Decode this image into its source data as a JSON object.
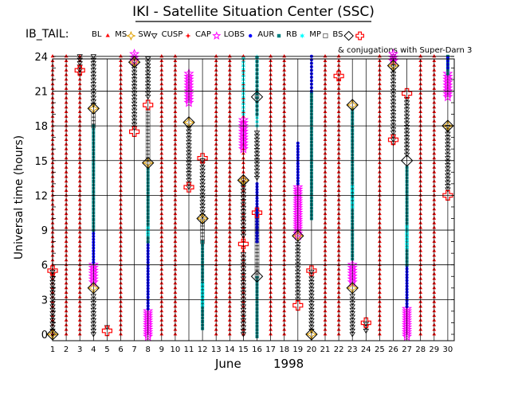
{
  "chart_data": {
    "type": "scatter",
    "title": "IKI - Satellite Situation Center (SSC)",
    "legend_prefix": "IB_TAIL:",
    "legend_note": "& conjugations with Super-Darn 3",
    "ylabel": "Universal time (hours)",
    "xlabel_month": "June",
    "xlabel_year": "1998",
    "xlim": [
      1,
      30
    ],
    "ylim": [
      0,
      24
    ],
    "yticks": [
      0,
      3,
      6,
      9,
      12,
      15,
      18,
      21,
      24
    ],
    "xticks": [
      1,
      2,
      3,
      4,
      5,
      6,
      7,
      8,
      9,
      10,
      11,
      12,
      13,
      14,
      15,
      16,
      17,
      18,
      19,
      20,
      21,
      22,
      23,
      24,
      25,
      26,
      27,
      28,
      29,
      30
    ],
    "series": [
      {
        "key": "BL",
        "name": "BL",
        "marker": "dot",
        "color": "#ff0000"
      },
      {
        "key": "MS",
        "name": "MS",
        "marker": "star4",
        "color": "#e0a000"
      },
      {
        "key": "SW",
        "name": "SW",
        "marker": "tri-down",
        "color": "#000000"
      },
      {
        "key": "CUSP",
        "name": "CUSP",
        "marker": "star",
        "color": "#ff0000"
      },
      {
        "key": "CAP",
        "name": "CAP",
        "marker": "star5",
        "color": "#ff00ff"
      },
      {
        "key": "LOBS",
        "name": "LOBS",
        "marker": "disc",
        "color": "#0000ff"
      },
      {
        "key": "AUR",
        "name": "AUR",
        "marker": "square",
        "color": "#008080"
      },
      {
        "key": "RB",
        "name": "RB",
        "marker": "star6",
        "color": "#00ffff"
      },
      {
        "key": "MP",
        "name": "MP",
        "marker": "open-square",
        "color": "#000000"
      },
      {
        "key": "BS",
        "name": "BS",
        "marker": "diamond",
        "color": "#000000"
      },
      {
        "key": "CONJ",
        "name": "",
        "marker": "cross",
        "color": "#ff0000"
      }
    ],
    "bl_columns": [
      1,
      2,
      3,
      6,
      9,
      10,
      13,
      14,
      15,
      17,
      18,
      21,
      22,
      25,
      28,
      29
    ],
    "columns": [
      {
        "day": 1,
        "segments": [
          {
            "t": "SW",
            "y0": 0,
            "y1": 5.5,
            "step": 0.3
          }
        ]
      },
      {
        "day": 3,
        "segments": [
          {
            "t": "SW",
            "y0": 22.5,
            "y1": 24,
            "step": 0.3
          }
        ]
      },
      {
        "day": 4,
        "segments": [
          {
            "t": "SW",
            "y0": 0,
            "y1": 3.5,
            "step": 0.3
          },
          {
            "t": "CAP",
            "y0": 4.5,
            "y1": 6.0,
            "step": 0.25
          },
          {
            "t": "LOBS",
            "y0": 6.2,
            "y1": 9.0,
            "step": 0.25
          },
          {
            "t": "AUR",
            "y0": 9.0,
            "y1": 18.0,
            "step": 0.3
          },
          {
            "t": "MP",
            "y0": 18.0,
            "y1": 19.0,
            "step": 0.3
          },
          {
            "t": "SW",
            "y0": 19.8,
            "y1": 24,
            "step": 0.3
          }
        ]
      },
      {
        "day": 5,
        "segments": [
          {
            "t": "SW",
            "y0": 0.6,
            "y1": 0.6,
            "step": 1
          }
        ]
      },
      {
        "day": 7,
        "segments": [
          {
            "t": "SW",
            "y0": 17.8,
            "y1": 24,
            "step": 0.3
          },
          {
            "t": "CAP",
            "y0": 23.6,
            "y1": 24.2,
            "step": 0.3
          }
        ]
      },
      {
        "day": 8,
        "segments": [
          {
            "t": "CAP",
            "y0": -0.2,
            "y1": 2.0,
            "step": 0.2
          },
          {
            "t": "LOBS",
            "y0": 2.2,
            "y1": 8.0,
            "step": 0.25
          },
          {
            "t": "AUR",
            "y0": 8.0,
            "y1": 14.5,
            "step": 0.3
          },
          {
            "t": "RB",
            "y0": 8.6,
            "y1": 9.2,
            "step": 0.3
          },
          {
            "t": "MP",
            "y0": 14.8,
            "y1": 19.5,
            "step": 0.3
          },
          {
            "t": "SW",
            "y0": 20.5,
            "y1": 24,
            "step": 0.3
          }
        ]
      },
      {
        "day": 11,
        "segments": [
          {
            "t": "CAP",
            "y0": 20.0,
            "y1": 22.5,
            "step": 0.25
          },
          {
            "t": "SW",
            "y0": 12.7,
            "y1": 18.0,
            "step": 0.3
          }
        ]
      },
      {
        "day": 12,
        "segments": [
          {
            "t": "AUR",
            "y0": 0.5,
            "y1": 8.0,
            "step": 0.3
          },
          {
            "t": "RB",
            "y0": 2.5,
            "y1": 4.5,
            "step": 0.3
          },
          {
            "t": "MP",
            "y0": 8.0,
            "y1": 10.0,
            "step": 0.3
          },
          {
            "t": "SW",
            "y0": 10.2,
            "y1": 15.0,
            "step": 0.3
          }
        ]
      },
      {
        "day": 16,
        "segments": [
          {
            "t": "AUR",
            "y0": -0.2,
            "y1": 5.0,
            "step": 0.3
          },
          {
            "t": "MP",
            "y0": 5.4,
            "y1": 10.5,
            "step": 0.3
          },
          {
            "t": "SW",
            "y0": 13.5,
            "y1": 17.5,
            "step": 0.3
          },
          {
            "t": "LOBS",
            "y0": 8.0,
            "y1": 13.0,
            "step": 0.25
          },
          {
            "t": "RB",
            "y0": 18.0,
            "y1": 24.0,
            "step": 0.35
          },
          {
            "t": "AUR",
            "y0": 19.0,
            "y1": 24.0,
            "step": 0.35
          }
        ]
      },
      {
        "day": 15,
        "segments": [
          {
            "t": "SW",
            "y0": 0,
            "y1": 7.0,
            "step": 0.3
          },
          {
            "t": "SW",
            "y0": 8.5,
            "y1": 13.5,
            "step": 0.3
          },
          {
            "t": "CAP",
            "y0": 16.0,
            "y1": 18.5,
            "step": 0.25
          },
          {
            "t": "RB",
            "y0": 19.0,
            "y1": 24.0,
            "step": 0.3
          }
        ]
      },
      {
        "day": 19,
        "segments": [
          {
            "t": "SW",
            "y0": 3.0,
            "y1": 8.0,
            "step": 0.3
          },
          {
            "t": "CAP",
            "y0": 8.5,
            "y1": 12.8,
            "step": 0.2
          },
          {
            "t": "LOBS",
            "y0": 13.0,
            "y1": 16.5,
            "step": 0.25
          }
        ]
      },
      {
        "day": 20,
        "segments": [
          {
            "t": "SW",
            "y0": 0.3,
            "y1": 5.5,
            "step": 0.3
          },
          {
            "t": "AUR",
            "y0": 10.0,
            "y1": 21.0,
            "step": 0.3
          },
          {
            "t": "LOBS",
            "y0": 21.0,
            "y1": 24.0,
            "step": 0.3
          }
        ]
      },
      {
        "day": 23,
        "segments": [
          {
            "t": "SW",
            "y0": 0,
            "y1": 3.5,
            "step": 0.3
          },
          {
            "t": "CAP",
            "y0": 4.5,
            "y1": 6.2,
            "step": 0.25
          },
          {
            "t": "AUR",
            "y0": 6.5,
            "y1": 19.5,
            "step": 0.3
          },
          {
            "t": "RB",
            "y0": 11.0,
            "y1": 13.0,
            "step": 0.35
          }
        ]
      },
      {
        "day": 24,
        "segments": [
          {
            "t": "SW",
            "y0": 0.3,
            "y1": 1.0,
            "step": 0.3
          }
        ]
      },
      {
        "day": 26,
        "segments": [
          {
            "t": "SW",
            "y0": 16.5,
            "y1": 24,
            "step": 0.3
          },
          {
            "t": "CAP",
            "y0": 23.6,
            "y1": 24.2,
            "step": 0.3
          }
        ]
      },
      {
        "day": 27,
        "segments": [
          {
            "t": "CAP",
            "y0": -0.2,
            "y1": 2.2,
            "step": 0.2
          },
          {
            "t": "LOBS",
            "y0": 2.4,
            "y1": 6.0,
            "step": 0.25
          },
          {
            "t": "AUR",
            "y0": 6.0,
            "y1": 14.5,
            "step": 0.3
          },
          {
            "t": "RB",
            "y0": 7.5,
            "y1": 9.5,
            "step": 0.3
          },
          {
            "t": "SW",
            "y0": 15.5,
            "y1": 20.5,
            "step": 0.3
          }
        ]
      },
      {
        "day": 30,
        "segments": [
          {
            "t": "SW",
            "y0": 12.5,
            "y1": 18.0,
            "step": 0.3
          },
          {
            "t": "CAP",
            "y0": 20.5,
            "y1": 22.5,
            "step": 0.25
          },
          {
            "t": "AUR",
            "y0": 22.5,
            "y1": 24.0,
            "step": 0.3
          },
          {
            "t": "LOBS",
            "y0": 23.0,
            "y1": 24.0,
            "step": 0.3
          }
        ]
      }
    ],
    "points": [
      {
        "t": "MS",
        "day": 1,
        "y": 0.0
      },
      {
        "t": "BS",
        "day": 1,
        "y": 0.0
      },
      {
        "t": "CONJ",
        "day": 1,
        "y": 5.5
      },
      {
        "t": "CONJ",
        "day": 3,
        "y": 22.8
      },
      {
        "t": "MS",
        "day": 4,
        "y": 4.0
      },
      {
        "t": "BS",
        "day": 4,
        "y": 4.0
      },
      {
        "t": "MS",
        "day": 4,
        "y": 19.5
      },
      {
        "t": "BS",
        "day": 4,
        "y": 19.5
      },
      {
        "t": "CONJ",
        "day": 5,
        "y": 0.3
      },
      {
        "t": "CONJ",
        "day": 7,
        "y": 17.5
      },
      {
        "t": "MS",
        "day": 7,
        "y": 23.5
      },
      {
        "t": "BS",
        "day": 7,
        "y": 23.5
      },
      {
        "t": "MS",
        "day": 8,
        "y": 14.8
      },
      {
        "t": "BS",
        "day": 8,
        "y": 14.8
      },
      {
        "t": "CONJ",
        "day": 8,
        "y": 19.8
      },
      {
        "t": "CONJ",
        "day": 11,
        "y": 12.7
      },
      {
        "t": "MS",
        "day": 11,
        "y": 18.3
      },
      {
        "t": "BS",
        "day": 11,
        "y": 18.3
      },
      {
        "t": "MS",
        "day": 12,
        "y": 10.0
      },
      {
        "t": "BS",
        "day": 12,
        "y": 10.0
      },
      {
        "t": "CONJ",
        "day": 12,
        "y": 15.2
      },
      {
        "t": "CONJ",
        "day": 15,
        "y": 7.8
      },
      {
        "t": "MS",
        "day": 15,
        "y": 13.3
      },
      {
        "t": "BS",
        "day": 15,
        "y": 13.3
      },
      {
        "t": "MP",
        "day": 16,
        "y": 5.0
      },
      {
        "t": "BS",
        "day": 16,
        "y": 5.0
      },
      {
        "t": "CONJ",
        "day": 16,
        "y": 10.5
      },
      {
        "t": "MP",
        "day": 16,
        "y": 20.5
      },
      {
        "t": "BS",
        "day": 16,
        "y": 20.5
      },
      {
        "t": "CONJ",
        "day": 19,
        "y": 2.5
      },
      {
        "t": "MS",
        "day": 19,
        "y": 8.5
      },
      {
        "t": "BS",
        "day": 19,
        "y": 8.5
      },
      {
        "t": "MS",
        "day": 20,
        "y": 0.0
      },
      {
        "t": "BS",
        "day": 20,
        "y": 0.0
      },
      {
        "t": "CONJ",
        "day": 20,
        "y": 5.5
      },
      {
        "t": "CONJ",
        "day": 22,
        "y": 22.3
      },
      {
        "t": "MS",
        "day": 23,
        "y": 4.0
      },
      {
        "t": "BS",
        "day": 23,
        "y": 4.0
      },
      {
        "t": "MS",
        "day": 23,
        "y": 19.8
      },
      {
        "t": "BS",
        "day": 23,
        "y": 19.8
      },
      {
        "t": "CONJ",
        "day": 24,
        "y": 1.0
      },
      {
        "t": "CONJ",
        "day": 26,
        "y": 16.8
      },
      {
        "t": "MS",
        "day": 26,
        "y": 23.2
      },
      {
        "t": "BS",
        "day": 26,
        "y": 23.2
      },
      {
        "t": "BS",
        "day": 27,
        "y": 15.0
      },
      {
        "t": "CONJ",
        "day": 27,
        "y": 20.8
      },
      {
        "t": "CONJ",
        "day": 30,
        "y": 12.0
      },
      {
        "t": "MS",
        "day": 30,
        "y": 18.0
      },
      {
        "t": "BS",
        "day": 30,
        "y": 18.0
      }
    ]
  }
}
